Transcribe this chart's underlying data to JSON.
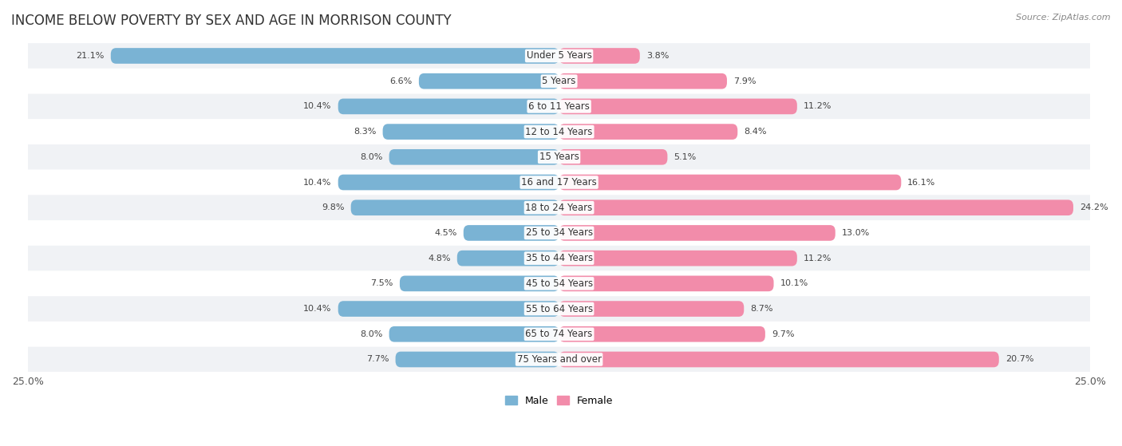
{
  "title": "INCOME BELOW POVERTY BY SEX AND AGE IN MORRISON COUNTY",
  "source": "Source: ZipAtlas.com",
  "categories": [
    "Under 5 Years",
    "5 Years",
    "6 to 11 Years",
    "12 to 14 Years",
    "15 Years",
    "16 and 17 Years",
    "18 to 24 Years",
    "25 to 34 Years",
    "35 to 44 Years",
    "45 to 54 Years",
    "55 to 64 Years",
    "65 to 74 Years",
    "75 Years and over"
  ],
  "male": [
    21.1,
    6.6,
    10.4,
    8.3,
    8.0,
    10.4,
    9.8,
    4.5,
    4.8,
    7.5,
    10.4,
    8.0,
    7.7
  ],
  "female": [
    3.8,
    7.9,
    11.2,
    8.4,
    5.1,
    16.1,
    24.2,
    13.0,
    11.2,
    10.1,
    8.7,
    9.7,
    20.7
  ],
  "male_color": "#7ab3d4",
  "female_color": "#f28caa",
  "male_label": "Male",
  "female_label": "Female",
  "xlim": 25.0,
  "bar_height": 0.62,
  "row_bg_light": "#f0f2f5",
  "row_bg_dark": "#e4e7ed",
  "title_fontsize": 12,
  "label_fontsize": 8.5,
  "tick_fontsize": 9,
  "source_fontsize": 8,
  "value_fontsize": 8
}
